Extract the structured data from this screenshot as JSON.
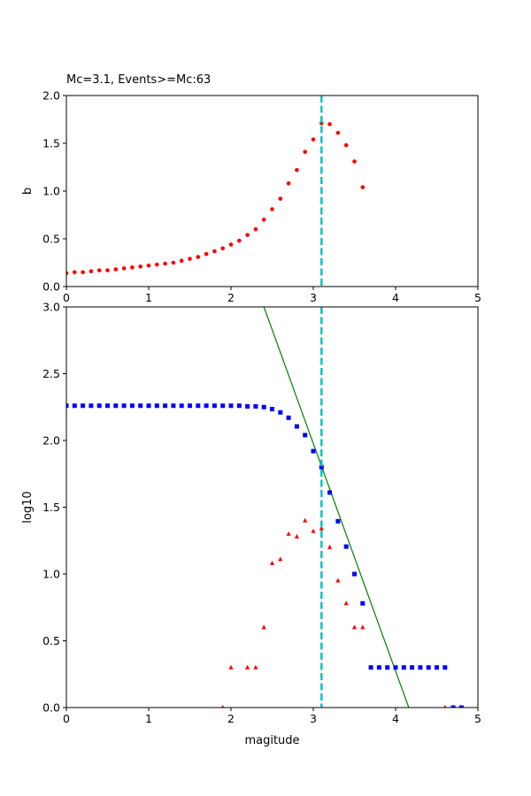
{
  "chart_data": [
    {
      "type": "scatter",
      "title": "Mc=3.1, Events>=Mc:63",
      "xlabel": "",
      "ylabel": "b",
      "xlim": [
        0,
        5
      ],
      "ylim": [
        0,
        2
      ],
      "xticks": [
        "0",
        "1",
        "2",
        "3",
        "4",
        "5"
      ],
      "yticks": [
        "0.0",
        "0.5",
        "1.0",
        "1.5",
        "2.0"
      ],
      "grid": false,
      "mc_line": 3.1,
      "series": [
        {
          "marker": "circle",
          "color": "#ff0000",
          "x": [
            0.0,
            0.1,
            0.2,
            0.3,
            0.4,
            0.5,
            0.6,
            0.7,
            0.8,
            0.9,
            1.0,
            1.1,
            1.2,
            1.3,
            1.4,
            1.5,
            1.6,
            1.7,
            1.8,
            1.9,
            2.0,
            2.1,
            2.2,
            2.3,
            2.4,
            2.5,
            2.6,
            2.7,
            2.8,
            2.9,
            3.0,
            3.1,
            3.2,
            3.3,
            3.4,
            3.5,
            3.6
          ],
          "y": [
            0.14,
            0.15,
            0.15,
            0.16,
            0.17,
            0.17,
            0.18,
            0.19,
            0.2,
            0.21,
            0.22,
            0.23,
            0.24,
            0.25,
            0.27,
            0.29,
            0.31,
            0.34,
            0.37,
            0.4,
            0.44,
            0.48,
            0.54,
            0.6,
            0.7,
            0.81,
            0.92,
            1.08,
            1.22,
            1.41,
            1.54,
            1.71,
            1.7,
            1.61,
            1.48,
            1.31,
            1.04
          ]
        }
      ]
    },
    {
      "type": "scatter",
      "title": "",
      "xlabel": "magitude",
      "ylabel": "log10",
      "xlim": [
        0,
        5
      ],
      "ylim": [
        0,
        3
      ],
      "xticks": [
        "0",
        "1",
        "2",
        "3",
        "4",
        "5"
      ],
      "yticks": [
        "0.0",
        "0.5",
        "1.0",
        "1.5",
        "2.0",
        "2.5",
        "3.0"
      ],
      "grid": false,
      "mc_line": 3.1,
      "fit_line": {
        "color": "#008000",
        "x": [
          2.4,
          4.16
        ],
        "y": [
          3.0,
          0.0
        ]
      },
      "series": [
        {
          "marker": "square",
          "color": "#0000ff",
          "x": [
            0.0,
            0.1,
            0.2,
            0.3,
            0.4,
            0.5,
            0.6,
            0.7,
            0.8,
            0.9,
            1.0,
            1.1,
            1.2,
            1.3,
            1.4,
            1.5,
            1.6,
            1.7,
            1.8,
            1.9,
            2.0,
            2.1,
            2.2,
            2.3,
            2.4,
            2.5,
            2.6,
            2.7,
            2.8,
            2.9,
            3.0,
            3.1,
            3.2,
            3.3,
            3.4,
            3.5,
            3.6,
            3.7,
            3.8,
            3.9,
            4.0,
            4.1,
            4.2,
            4.3,
            4.4,
            4.5,
            4.6,
            4.7,
            4.8
          ],
          "y": [
            2.26,
            2.26,
            2.26,
            2.26,
            2.26,
            2.26,
            2.26,
            2.26,
            2.26,
            2.26,
            2.26,
            2.26,
            2.26,
            2.26,
            2.26,
            2.26,
            2.26,
            2.26,
            2.26,
            2.26,
            2.26,
            2.26,
            2.255,
            2.255,
            2.25,
            2.235,
            2.21,
            2.17,
            2.105,
            2.04,
            1.92,
            1.8,
            1.61,
            1.395,
            1.205,
            1.0,
            0.78,
            0.3,
            0.3,
            0.3,
            0.3,
            0.3,
            0.3,
            0.3,
            0.3,
            0.3,
            0.3,
            0.0,
            0.0
          ]
        },
        {
          "marker": "triangle",
          "color": "#ff0000",
          "x": [
            1.9,
            2.0,
            2.2,
            2.3,
            2.4,
            2.5,
            2.6,
            2.7,
            2.8,
            2.9,
            3.0,
            3.1,
            3.2,
            3.3,
            3.4,
            3.5,
            3.6,
            4.6
          ],
          "y": [
            0.0,
            0.3,
            0.3,
            0.3,
            0.6,
            1.08,
            1.11,
            1.3,
            1.28,
            1.4,
            1.32,
            1.34,
            1.2,
            0.95,
            0.78,
            0.6,
            0.6,
            0.0
          ]
        }
      ]
    }
  ]
}
